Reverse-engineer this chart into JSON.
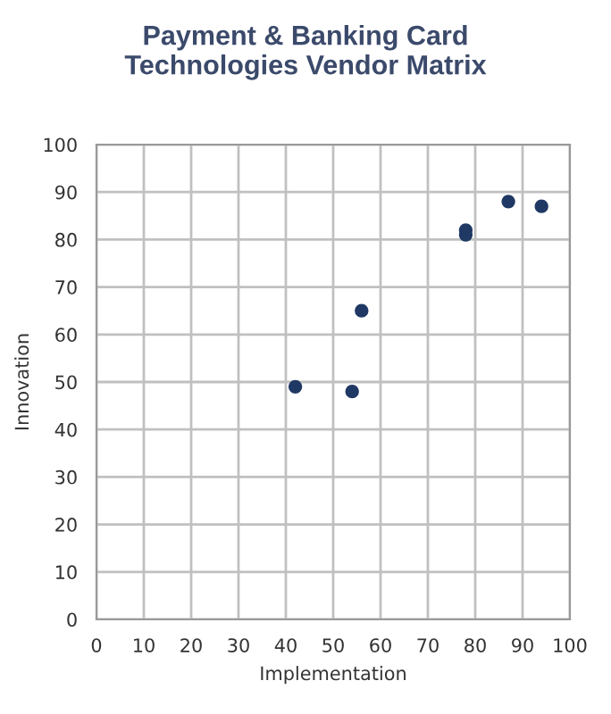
{
  "chart_data": {
    "type": "scatter",
    "title": "Payment & Banking Card\nTechnologies Vendor Matrix",
    "xlabel": "Implementation",
    "ylabel": "Innovation",
    "x": [
      42,
      54,
      56,
      78,
      78,
      87,
      94
    ],
    "series": [
      {
        "color": "#1f3864",
        "values": [
          49,
          48,
          65,
          82,
          81,
          88,
          87
        ]
      }
    ],
    "xlim": [
      0,
      100
    ],
    "ylim": [
      0,
      100
    ],
    "xticks": [
      0,
      10,
      20,
      30,
      40,
      50,
      60,
      70,
      80,
      90,
      100
    ],
    "yticks": [
      0,
      10,
      20,
      30,
      40,
      50,
      60,
      70,
      80,
      90,
      100
    ],
    "grid": true,
    "marker": "circle",
    "legend": false
  }
}
